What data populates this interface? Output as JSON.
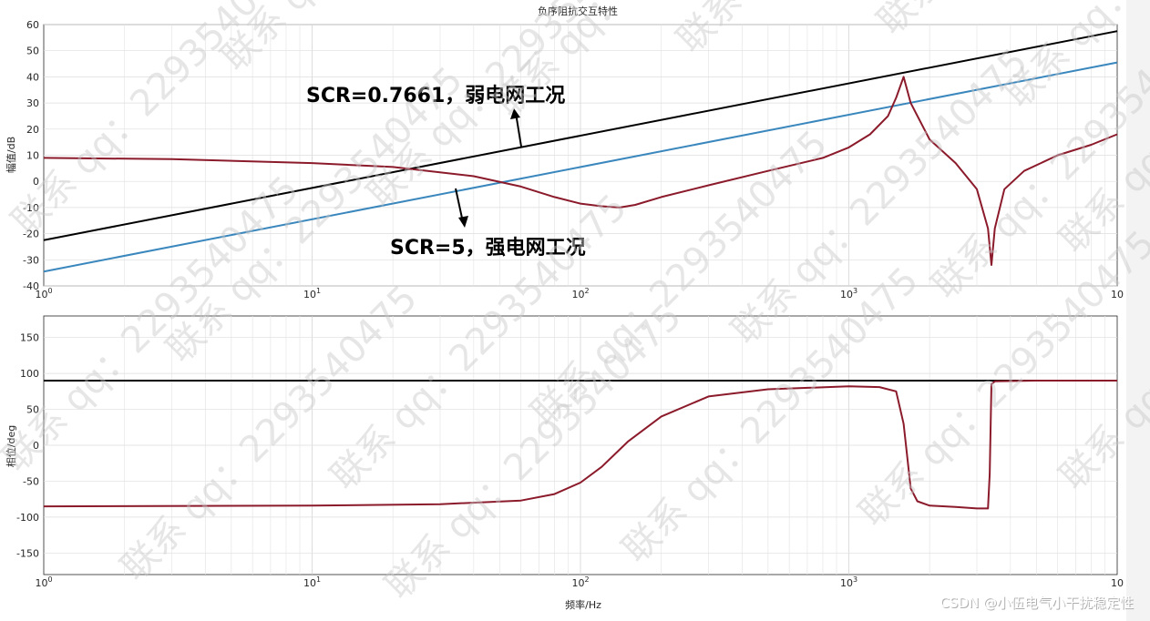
{
  "title": "负序阻抗交互特性",
  "chart_data": [
    {
      "type": "line",
      "title": "负序阻抗交互特性",
      "xlabel": "",
      "ylabel": "幅值/dB",
      "xscale": "log",
      "xlim": [
        1,
        10000
      ],
      "ylim": [
        -40,
        60
      ],
      "grid": true,
      "xticks": [
        "10^0",
        "10^1",
        "10^2",
        "10^3",
        "10"
      ],
      "yticks": [
        "60",
        "50",
        "40",
        "30",
        "20",
        "10",
        "0",
        "-10",
        "-20",
        "-30",
        "-40"
      ],
      "series": [
        {
          "name": "",
          "color": "#000000",
          "x": [
            1,
            10000
          ],
          "y": [
            -22.5,
            57.5
          ]
        },
        {
          "name": "",
          "color": "#3a87bd",
          "x": [
            1,
            10000
          ],
          "y": [
            -34.5,
            45.5
          ]
        },
        {
          "name": "",
          "color": "#8b1a2b",
          "x": [
            1,
            3,
            10,
            20,
            40,
            60,
            80,
            100,
            120,
            140,
            160,
            200,
            300,
            500,
            800,
            1000,
            1200,
            1400,
            1500,
            1600,
            1700,
            2000,
            2500,
            3000,
            3300,
            3400,
            3500,
            3800,
            4500,
            6000,
            8000,
            10000
          ],
          "y": [
            9,
            8.5,
            7,
            5.5,
            2,
            -2,
            -6,
            -8.5,
            -9.5,
            -10,
            -9,
            -6,
            -1.5,
            4,
            9,
            13,
            18,
            25,
            32,
            40,
            30,
            16,
            7,
            -3,
            -18,
            -32,
            -18,
            -3,
            4,
            10,
            14,
            18
          ]
        }
      ],
      "annotations": [
        {
          "text": "SCR=0.7661，弱电网工况"
        },
        {
          "text": "SCR=5，强电网工况"
        }
      ]
    },
    {
      "type": "line",
      "title": "",
      "xlabel": "频率/Hz",
      "ylabel": "相位/deg",
      "xscale": "log",
      "xlim": [
        1,
        10000
      ],
      "ylim": [
        -180,
        180
      ],
      "grid": true,
      "xticks": [
        "10^0",
        "10^1",
        "10^2",
        "10^3",
        "10"
      ],
      "yticks": [
        "150",
        "100",
        "50",
        "0",
        "-50",
        "-100",
        "-150"
      ],
      "series": [
        {
          "name": "",
          "color": "#000000",
          "x": [
            1,
            10000
          ],
          "y": [
            90,
            90
          ]
        },
        {
          "name": "",
          "color": "#8b1a2b",
          "x": [
            1,
            10,
            30,
            60,
            80,
            100,
            120,
            150,
            200,
            300,
            500,
            1000,
            1300,
            1500,
            1600,
            1700,
            1800,
            2000,
            2500,
            3000,
            3300,
            3350,
            3400,
            3500,
            5000,
            10000
          ],
          "y": [
            -85,
            -84,
            -82,
            -77,
            -68,
            -52,
            -30,
            5,
            40,
            68,
            78,
            82,
            81,
            75,
            30,
            -60,
            -78,
            -84,
            -86,
            -88,
            -88,
            -40,
            85,
            89,
            90,
            90
          ]
        }
      ]
    }
  ],
  "watermark": {
    "text": "联系 qq：2293540475"
  },
  "credit": {
    "text": "CSDN @小伍电气小干扰稳定性"
  }
}
